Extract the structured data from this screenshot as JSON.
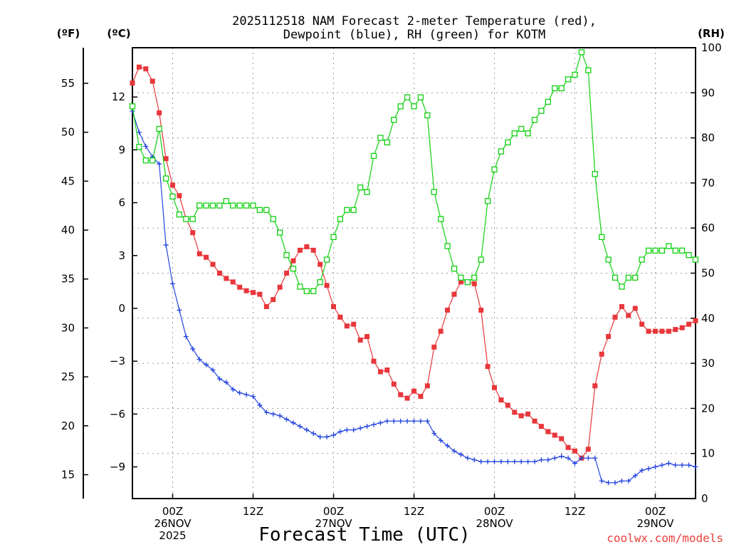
{
  "chart_data": {
    "type": "line",
    "title_line1": "2025112518 NAM Forecast 2-meter Temperature (red),",
    "title_line2": "Dewpoint (blue), RH (green) for KOTM",
    "xlabel": "Forecast Time (UTC)",
    "credit": "coolwx.com/models",
    "units": {
      "fahrenheit": "(ºF)",
      "celsius": "(ºC)",
      "rh": "(RH)"
    },
    "x_range_hours": [
      0,
      84
    ],
    "celsius_range": [
      -10.8,
      14.8
    ],
    "rh_range": [
      0,
      100
    ],
    "celsius_ticks": [
      "12",
      "9",
      "6",
      "3",
      "0",
      "−3",
      "−6",
      "−9"
    ],
    "celsius_tick_values": [
      12,
      9,
      6,
      3,
      0,
      -3,
      -6,
      -9
    ],
    "fahrenheit_ticks": [
      "55",
      "50",
      "45",
      "40",
      "35",
      "30",
      "25",
      "20",
      "15"
    ],
    "fahrenheit_tick_values": [
      55,
      50,
      45,
      40,
      35,
      30,
      25,
      20,
      15
    ],
    "rh_ticks": [
      "100",
      "90",
      "80",
      "70",
      "60",
      "50",
      "40",
      "30",
      "20",
      "10",
      "0"
    ],
    "rh_tick_values": [
      100,
      90,
      80,
      70,
      60,
      50,
      40,
      30,
      20,
      10,
      0
    ],
    "x_ticks": [
      {
        "hour": 6,
        "line1": "00Z",
        "line2": "26NOV",
        "line3": "2025"
      },
      {
        "hour": 18,
        "line1": "12Z",
        "line2": "",
        "line3": ""
      },
      {
        "hour": 30,
        "line1": "00Z",
        "line2": "27NOV",
        "line3": ""
      },
      {
        "hour": 42,
        "line1": "12Z",
        "line2": "",
        "line3": ""
      },
      {
        "hour": 54,
        "line1": "00Z",
        "line2": "28NOV",
        "line3": ""
      },
      {
        "hour": 66,
        "line1": "12Z",
        "line2": "",
        "line3": ""
      },
      {
        "hour": 78,
        "line1": "00Z",
        "line2": "29NOV",
        "line3": ""
      }
    ],
    "series": [
      {
        "name": "2-meter Temperature",
        "color": "#e8363a",
        "marker": "filled-square",
        "hours": [
          0,
          1,
          2,
          3,
          4,
          5,
          6,
          7,
          8,
          9,
          10,
          11,
          12,
          13,
          14,
          15,
          16,
          17,
          18,
          19,
          20,
          21,
          22,
          23,
          24,
          25,
          26,
          27,
          28,
          29,
          30,
          31,
          32,
          33,
          34,
          35,
          36,
          37,
          38,
          39,
          40,
          41,
          42,
          43,
          44,
          45,
          46,
          47,
          48,
          49,
          50,
          51,
          52,
          53,
          54,
          55,
          56,
          57,
          58,
          59,
          60,
          61,
          62,
          63,
          64,
          65,
          66,
          67,
          68,
          69,
          70,
          71,
          72,
          73,
          74,
          75,
          76,
          77,
          78,
          79,
          80,
          81,
          82,
          83,
          84
        ],
        "values": [
          12.8,
          13.7,
          13.6,
          12.9,
          11.1,
          8.5,
          7.0,
          6.4,
          5.1,
          4.3,
          3.1,
          2.9,
          2.5,
          2.0,
          1.7,
          1.5,
          1.2,
          1.0,
          0.9,
          0.8,
          0.1,
          0.5,
          1.2,
          2.0,
          2.7,
          3.3,
          3.5,
          3.3,
          2.5,
          1.3,
          0.1,
          -0.5,
          -1.0,
          -0.9,
          -1.8,
          -1.6,
          -3.0,
          -3.6,
          -3.5,
          -4.3,
          -4.9,
          -5.1,
          -4.7,
          -5.0,
          -4.4,
          -2.2,
          -1.3,
          -0.1,
          0.8,
          1.5,
          1.5,
          1.4,
          -0.1,
          -3.3,
          -4.5,
          -5.2,
          -5.5,
          -5.9,
          -6.1,
          -6.0,
          -6.4,
          -6.7,
          -7.0,
          -7.2,
          -7.4,
          -7.9,
          -8.1,
          -8.5,
          -8.0,
          -4.4,
          -2.6,
          -1.6,
          -0.5,
          0.1,
          -0.4,
          0.0,
          -0.9,
          -1.3,
          -1.3,
          -1.3,
          -1.3,
          -1.2,
          -1.1,
          -0.9,
          -0.7
        ]
      },
      {
        "name": "Dewpoint",
        "color": "#2244e0",
        "marker": "plus",
        "hours": [
          0,
          1,
          2,
          3,
          4,
          5,
          6,
          7,
          8,
          9,
          10,
          11,
          12,
          13,
          14,
          15,
          16,
          17,
          18,
          19,
          20,
          21,
          22,
          23,
          24,
          25,
          26,
          27,
          28,
          29,
          30,
          31,
          32,
          33,
          34,
          35,
          36,
          37,
          38,
          39,
          40,
          41,
          42,
          43,
          44,
          45,
          46,
          47,
          48,
          49,
          50,
          51,
          52,
          53,
          54,
          55,
          56,
          57,
          58,
          59,
          60,
          61,
          62,
          63,
          64,
          65,
          66,
          67,
          68,
          69,
          70,
          71,
          72,
          73,
          74,
          75,
          76,
          77,
          78,
          79,
          80,
          81,
          82,
          83,
          84
        ],
        "values": [
          11.2,
          10.0,
          9.2,
          8.6,
          8.2,
          3.6,
          1.4,
          -0.1,
          -1.6,
          -2.3,
          -2.9,
          -3.2,
          -3.5,
          -4.0,
          -4.2,
          -4.6,
          -4.8,
          -4.9,
          -5.0,
          -5.5,
          -5.9,
          -6.0,
          -6.1,
          -6.3,
          -6.5,
          -6.7,
          -6.9,
          -7.1,
          -7.3,
          -7.3,
          -7.2,
          -7.0,
          -6.9,
          -6.9,
          -6.8,
          -6.7,
          -6.6,
          -6.5,
          -6.4,
          -6.4,
          -6.4,
          -6.4,
          -6.4,
          -6.4,
          -6.4,
          -7.1,
          -7.5,
          -7.8,
          -8.1,
          -8.3,
          -8.5,
          -8.6,
          -8.7,
          -8.7,
          -8.7,
          -8.7,
          -8.7,
          -8.7,
          -8.7,
          -8.7,
          -8.7,
          -8.6,
          -8.6,
          -8.5,
          -8.4,
          -8.5,
          -8.8,
          -8.5,
          -8.5,
          -8.5,
          -9.8,
          -9.9,
          -9.9,
          -9.8,
          -9.8,
          -9.5,
          -9.2,
          -9.1,
          -9.0,
          -8.9,
          -8.8,
          -8.9,
          -8.9,
          -8.9,
          -9.0
        ]
      },
      {
        "name": "RH",
        "color": "#10d010",
        "marker": "open-square",
        "hours": [
          0,
          1,
          2,
          3,
          4,
          5,
          6,
          7,
          8,
          9,
          10,
          11,
          12,
          13,
          14,
          15,
          16,
          17,
          18,
          19,
          20,
          21,
          22,
          23,
          24,
          25,
          26,
          27,
          28,
          29,
          30,
          31,
          32,
          33,
          34,
          35,
          36,
          37,
          38,
          39,
          40,
          41,
          42,
          43,
          44,
          45,
          46,
          47,
          48,
          49,
          50,
          51,
          52,
          53,
          54,
          55,
          56,
          57,
          58,
          59,
          60,
          61,
          62,
          63,
          64,
          65,
          66,
          67,
          68,
          69,
          70,
          71,
          72,
          73,
          74,
          75,
          76,
          77,
          78,
          79,
          80,
          81,
          82,
          83,
          84
        ],
        "values": [
          87,
          78,
          75,
          75,
          82,
          71,
          67,
          63,
          62,
          62,
          65,
          65,
          65,
          65,
          66,
          65,
          65,
          65,
          65,
          64,
          64,
          62,
          59,
          54,
          51,
          47,
          46,
          46,
          48,
          53,
          58,
          62,
          64,
          64,
          69,
          68,
          76,
          80,
          79,
          84,
          87,
          89,
          87,
          89,
          85,
          68,
          62,
          56,
          51,
          49,
          48,
          49,
          53,
          66,
          73,
          77,
          79,
          81,
          82,
          81,
          84,
          86,
          88,
          91,
          91,
          93,
          94,
          99,
          95,
          72,
          58,
          53,
          49,
          47,
          49,
          49,
          53,
          55,
          55,
          55,
          56,
          55,
          55,
          54,
          53
        ]
      }
    ]
  }
}
